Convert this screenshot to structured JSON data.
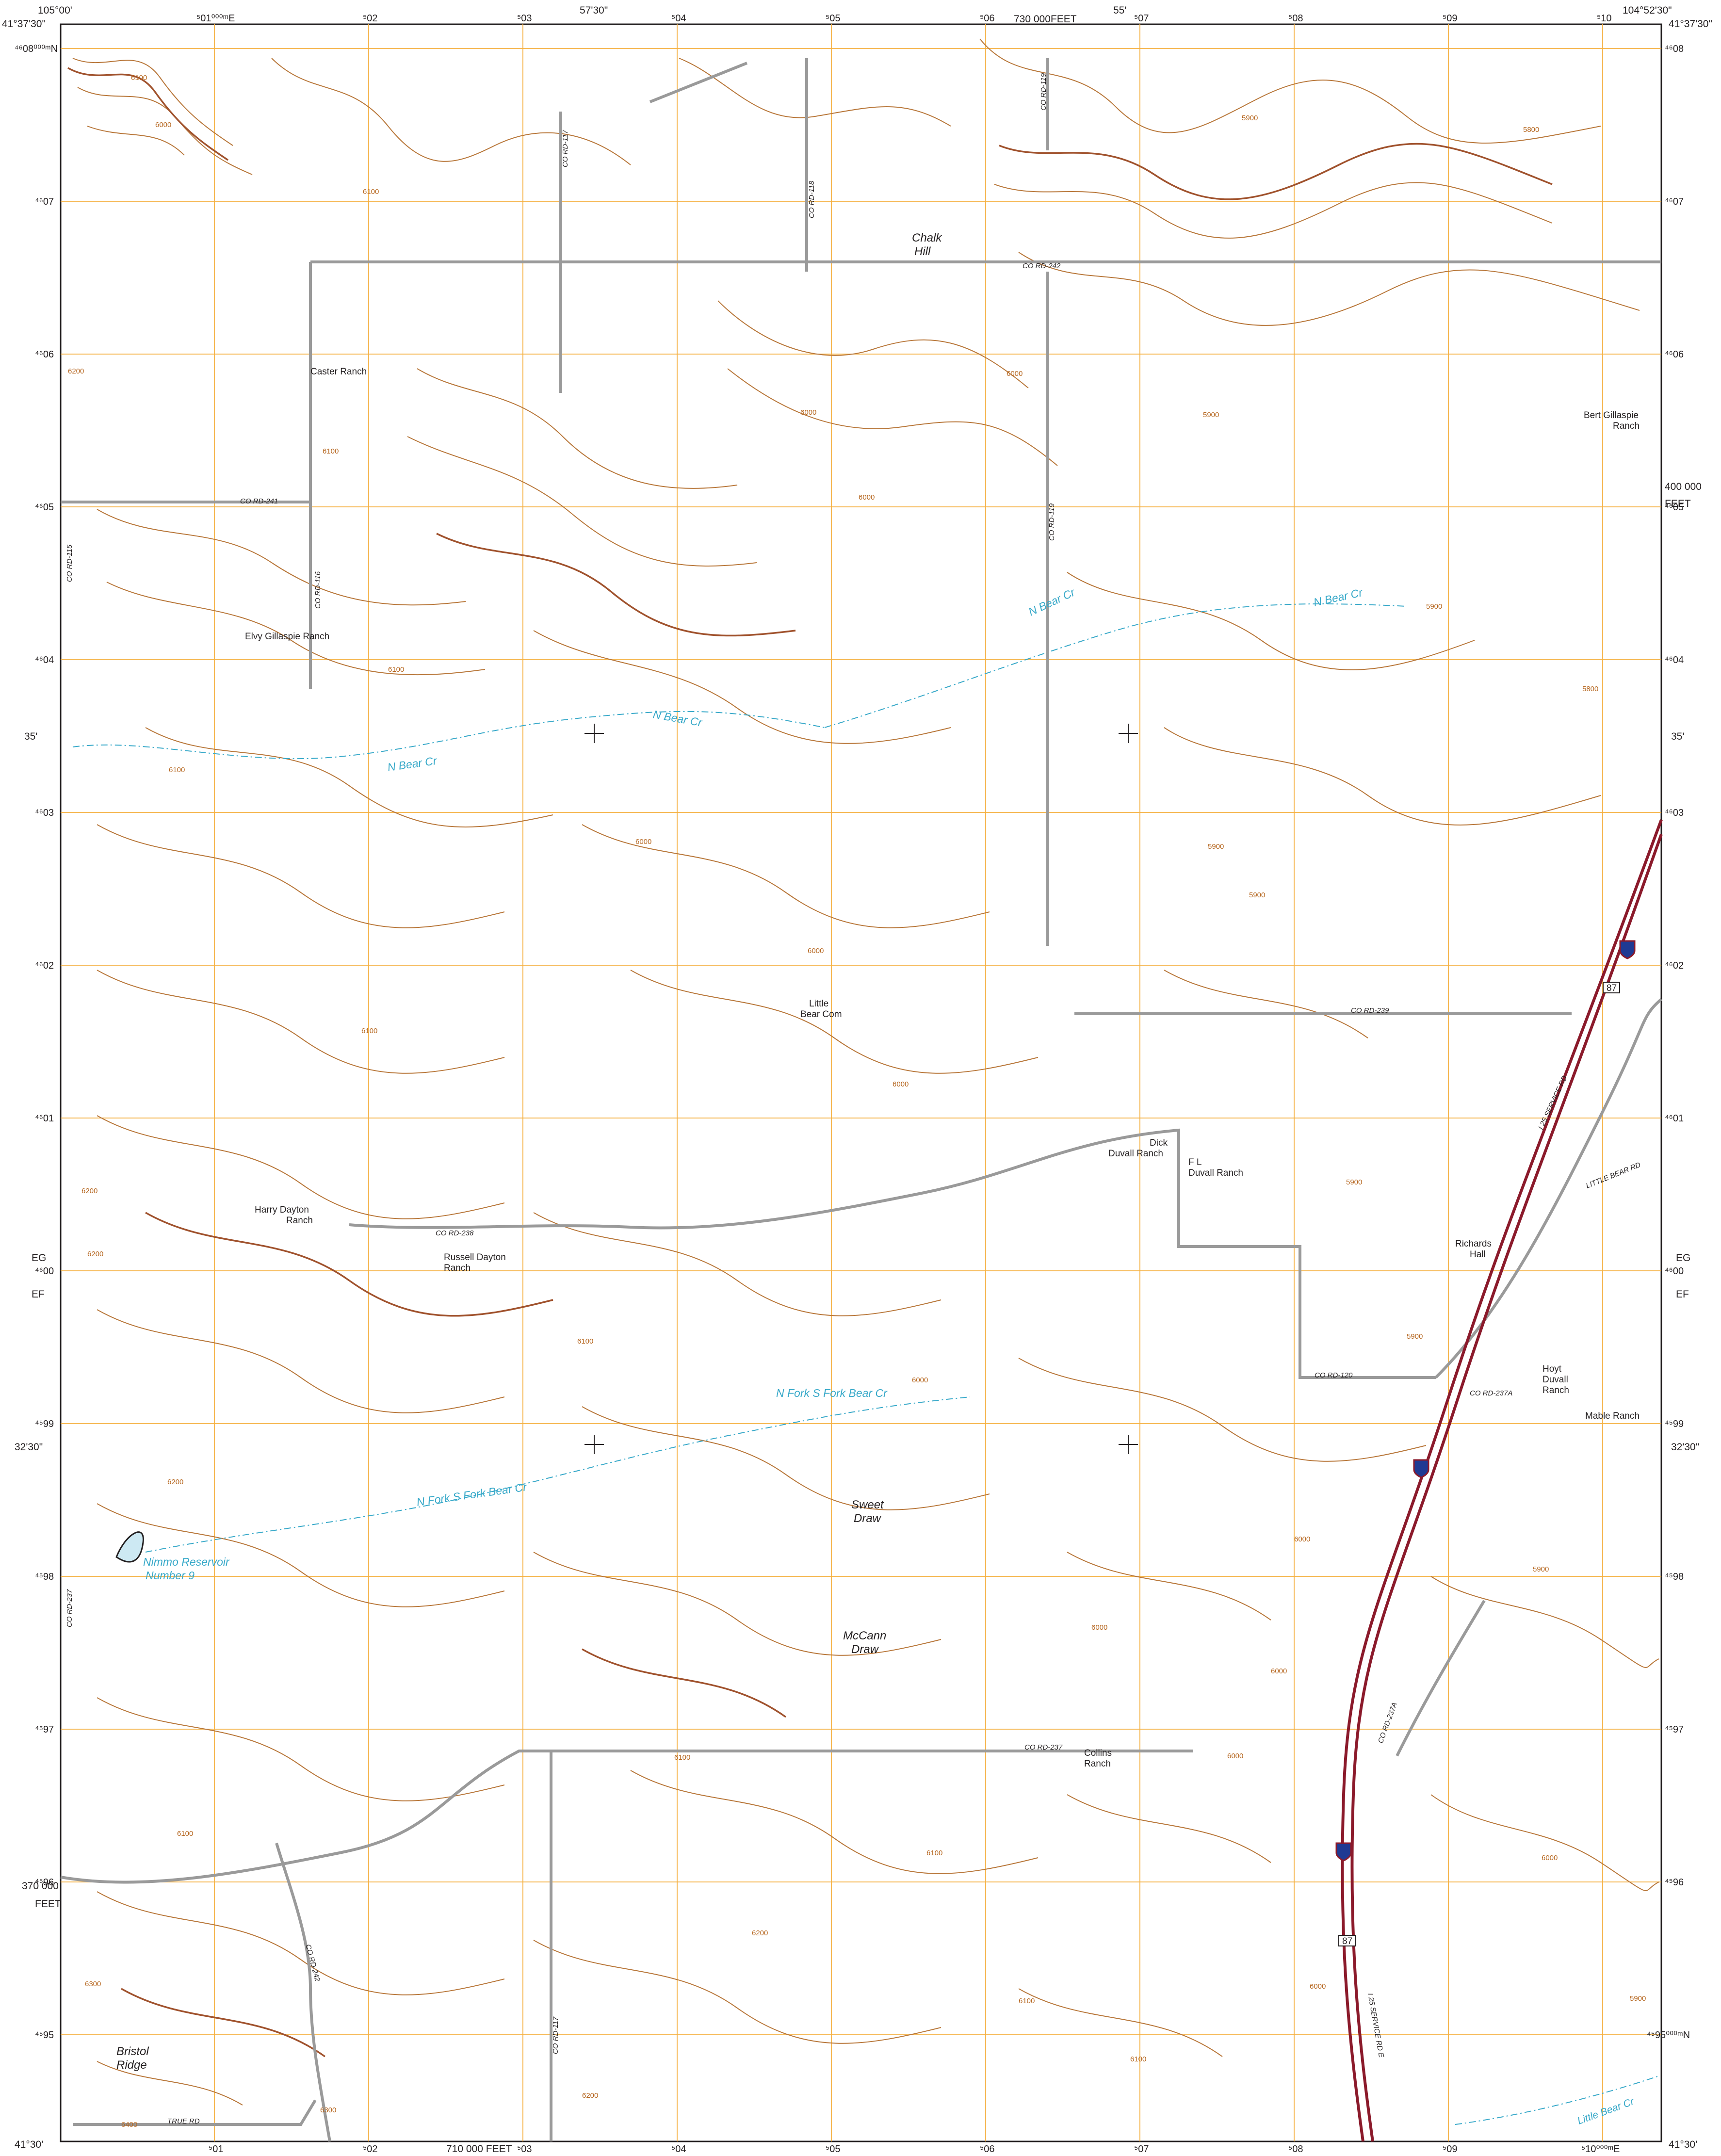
{
  "corner_labels": {
    "top_left_lon": "105°00'",
    "top_right_lon": "104°52'30\"",
    "top_left_lat": "41°37'30\"",
    "top_right_lat": "41°37'30\"",
    "bottom_left_lat": "41°30'",
    "bottom_right_lat": "41°30'"
  },
  "margin_ticks": {
    "top": [
      {
        "text": "57'30\""
      },
      {
        "text": "55'"
      },
      {
        "text": "730 000FEET"
      }
    ],
    "bottom": [
      {
        "text": "710 000 FEET"
      }
    ],
    "left": [
      {
        "text": "35'"
      },
      {
        "text": "32'30\""
      },
      {
        "text": "EG"
      },
      {
        "text": "EF"
      },
      {
        "text": "370 000"
      },
      {
        "text": "FEET"
      }
    ],
    "right": [
      {
        "text": "35'"
      },
      {
        "text": "32'30\""
      },
      {
        "text": "EG"
      },
      {
        "text": "EF"
      },
      {
        "text": "400 000"
      },
      {
        "text": "FEET"
      }
    ]
  },
  "easting_labels_top": [
    "⁵01⁰⁰⁰ᵐE",
    "⁵02",
    "⁵03",
    "⁵04",
    "⁵05",
    "⁵06",
    "⁵07",
    "⁵08",
    "⁵09",
    "⁵10"
  ],
  "easting_labels_bottom": [
    "⁵01",
    "⁵02",
    "⁵03",
    "⁵04",
    "⁵05",
    "⁵06",
    "⁵07",
    "⁵08",
    "⁵09",
    "⁵10⁰⁰⁰ᵐE"
  ],
  "northing_labels_left": [
    "⁴⁶08⁰⁰⁰ᵐN",
    "⁴⁶07",
    "⁴⁶06",
    "⁴⁶05",
    "⁴⁶04",
    "⁴⁶03",
    "⁴⁶02",
    "⁴⁶01",
    "⁴⁶00",
    "⁴⁵99",
    "⁴⁵98",
    "⁴⁵97",
    "⁴⁵96",
    "⁴⁵95"
  ],
  "northing_labels_right": [
    "⁴⁶08",
    "⁴⁶07",
    "⁴⁶06",
    "⁴⁶05",
    "⁴⁶04",
    "⁴⁶03",
    "⁴⁶02",
    "⁴⁶01",
    "⁴⁶00",
    "⁴⁵99",
    "⁴⁵98",
    "⁴⁵97",
    "⁴⁵96",
    "⁴⁵95⁰⁰⁰ᵐN"
  ],
  "places": {
    "chalk_hill": [
      "Chalk",
      "Hill"
    ],
    "caster_ranch": "Caster Ranch",
    "bert_gillaspie_ranch": [
      "Bert Gillaspie",
      "Ranch"
    ],
    "elvy_gillaspie_ranch": "Elvy Gillaspie Ranch",
    "little_bear_com": [
      "Little",
      "Bear Com"
    ],
    "dick_duvall_ranch": [
      "Dick",
      "Duvall Ranch"
    ],
    "fl_duvall_ranch": [
      "F L",
      "Duvall Ranch"
    ],
    "harry_dayton_ranch": [
      "Harry Dayton",
      "Ranch"
    ],
    "russell_dayton_ranch": [
      "Russell Dayton",
      "Ranch"
    ],
    "richards_hall": [
      "Richards",
      "Hall"
    ],
    "hoyt_duvall_ranch": [
      "Hoyt",
      "Duvall",
      "Ranch"
    ],
    "mable_ranch": "Mable Ranch",
    "sweet_draw": [
      "Sweet",
      "Draw"
    ],
    "mccann_draw": [
      "McCann",
      "Draw"
    ],
    "collins_ranch": [
      "Collins",
      "Ranch"
    ],
    "bristol_ridge": [
      "Bristol",
      "Ridge"
    ]
  },
  "water": {
    "n_bear_cr": "N Bear Cr",
    "nf_sf_bear_cr": "N Fork S Fork Bear Cr",
    "nimmo_reservoir": [
      "Nimmo Reservoir",
      "Number 9"
    ],
    "little_bear_cr": "Little Bear Cr"
  },
  "roads": {
    "co_rd_117": "CO RD-117",
    "co_rd_118": "CO RD-118",
    "co_rd_119": "CO RD-119",
    "co_rd_242": "CO RD-242",
    "co_rd_241": "CO RD-241",
    "co_rd_115": "CO RD-115",
    "co_rd_116": "CO RD-116",
    "co_rd_239": "CO RD-239",
    "co_rd_238": "CO RD-238",
    "co_rd_120": "CO RD-120",
    "co_rd_237a": "CO RD-237A",
    "co_rd_237": "CO RD-237",
    "co_rd_237b": "CO RD-237",
    "co_rd_242b": "CO RD-242",
    "co_rd_117b": "CO RD-117",
    "i25_service_rd": "I 25 SERVICE RD",
    "i25_service_rd_e": "I 25 SERVICE RD E",
    "little_bear_rd": "LITTLE BEAR RD",
    "true_rd": "TRUE RD",
    "co_rd_237a_s": "CO RD-237A",
    "us87": "87",
    "i25": "25"
  },
  "contour_values": [
    "6100",
    "6000",
    "5900",
    "5800",
    "6200",
    "6300",
    "6400"
  ],
  "colors": {
    "contour": "#b8773a",
    "index_contour": "#a0522d",
    "grid": "#f5b041",
    "water": "#38a9c9",
    "road": "#9a9a9a",
    "interstate": "#8b1a2b"
  }
}
